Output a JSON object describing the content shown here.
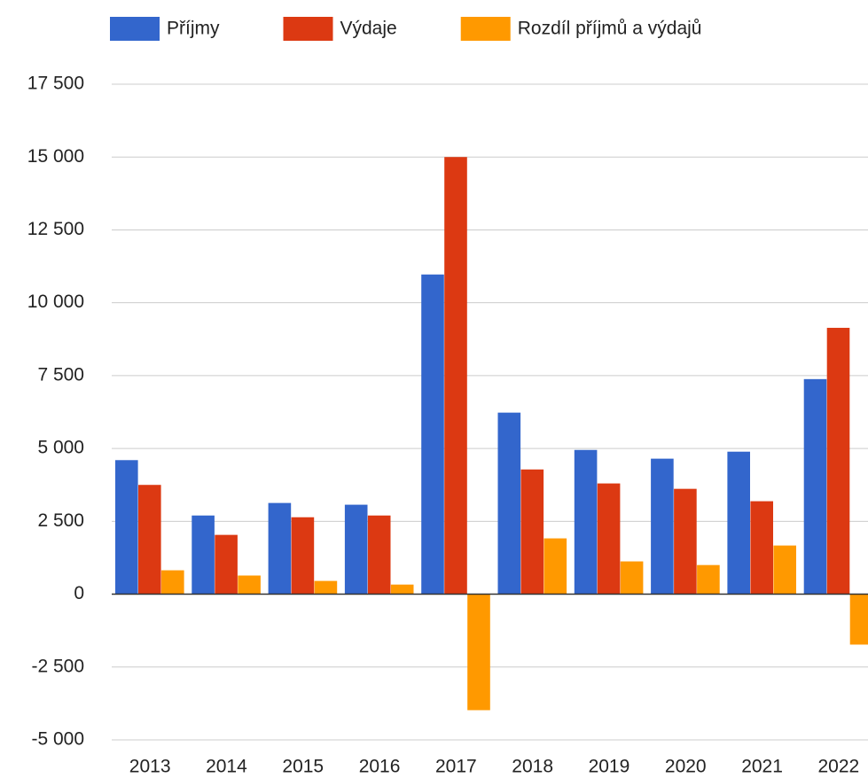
{
  "chart_data": {
    "type": "bar",
    "categories": [
      "2013",
      "2014",
      "2015",
      "2016",
      "2017",
      "2018",
      "2019",
      "2020",
      "2021",
      "2022"
    ],
    "series": [
      {
        "name": "Příjmy",
        "color": "#3366cc",
        "values": [
          4600,
          2700,
          3130,
          3070,
          10970,
          6230,
          4950,
          4650,
          4890,
          7380
        ]
      },
      {
        "name": "Výdaje",
        "color": "#dc3912",
        "values": [
          3750,
          2035,
          2640,
          2700,
          15000,
          4280,
          3800,
          3615,
          3190,
          9140
        ]
      },
      {
        "name": "Rozdíl příjmů a výdajů",
        "color": "#ff9900",
        "values": [
          820,
          640,
          455,
          330,
          -3980,
          1915,
          1125,
          1000,
          1670,
          -1730
        ]
      }
    ],
    "ylim": [
      -5000,
      17500
    ],
    "yticks": [
      {
        "value": -5000,
        "label": "-5 000"
      },
      {
        "value": -2500,
        "label": "-2 500"
      },
      0,
      {
        "value": 2500,
        "label": "2 500"
      },
      {
        "value": 5000,
        "label": "5 000"
      },
      {
        "value": 7500,
        "label": "7 500"
      },
      {
        "value": 10000,
        "label": "10 000"
      },
      {
        "value": 12500,
        "label": "12 500"
      },
      {
        "value": 15000,
        "label": "15 000"
      },
      {
        "value": 17500,
        "label": "17 500"
      }
    ],
    "grid": true,
    "legend": "top"
  }
}
